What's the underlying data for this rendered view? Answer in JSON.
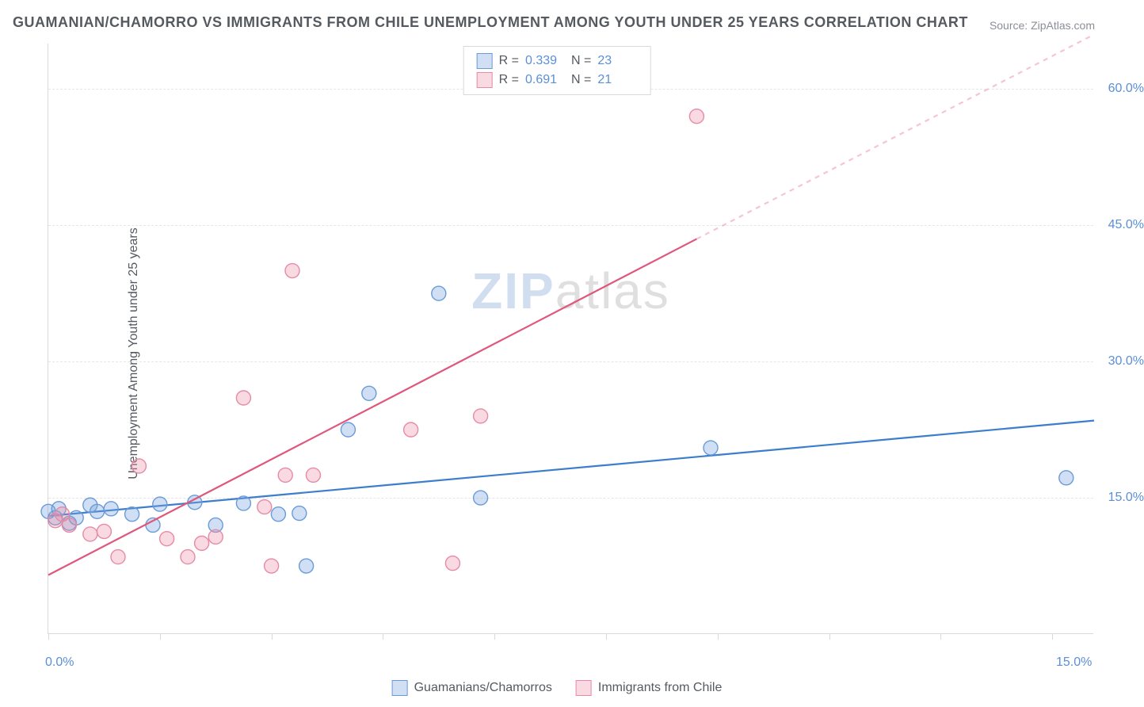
{
  "title": "GUAMANIAN/CHAMORRO VS IMMIGRANTS FROM CHILE UNEMPLOYMENT AMONG YOUTH UNDER 25 YEARS CORRELATION CHART",
  "source": "Source: ZipAtlas.com",
  "y_axis_label": "Unemployment Among Youth under 25 years",
  "watermark_a": "ZIP",
  "watermark_b": "atlas",
  "chart": {
    "type": "scatter",
    "xlim": [
      0,
      15
    ],
    "ylim": [
      0,
      65
    ],
    "x_ticks": [
      0,
      1.6,
      3.2,
      4.8,
      6.4,
      8.0,
      9.6,
      11.2,
      12.8,
      14.4
    ],
    "x_tick_labels": {
      "0": "0.0%",
      "15": "15.0%"
    },
    "y_gridlines": [
      15,
      30,
      45,
      60
    ],
    "y_tick_labels": [
      "15.0%",
      "30.0%",
      "45.0%",
      "60.0%"
    ],
    "background_color": "#ffffff",
    "grid_color": "#e4e6ea",
    "axis_color": "#d6d9dd",
    "marker_radius": 9,
    "marker_stroke_width": 1.4,
    "trend_line_width": 2.2
  },
  "series": [
    {
      "name": "Guamanians/Chamorros",
      "color_fill": "rgba(120,164,220,0.35)",
      "color_stroke": "#6a9bd8",
      "r_value": "0.339",
      "n_value": "23",
      "trend": {
        "x1": 0,
        "y1": 13.0,
        "x2": 15,
        "y2": 23.5,
        "color": "#3d7ecc"
      },
      "points": [
        [
          0.0,
          13.5
        ],
        [
          0.1,
          12.8
        ],
        [
          0.15,
          13.8
        ],
        [
          0.3,
          12.2
        ],
        [
          0.4,
          12.8
        ],
        [
          0.6,
          14.2
        ],
        [
          0.7,
          13.5
        ],
        [
          0.9,
          13.8
        ],
        [
          1.2,
          13.2
        ],
        [
          1.5,
          12.0
        ],
        [
          1.6,
          14.3
        ],
        [
          2.1,
          14.5
        ],
        [
          2.4,
          12.0
        ],
        [
          2.8,
          14.4
        ],
        [
          3.3,
          13.2
        ],
        [
          3.6,
          13.3
        ],
        [
          3.7,
          7.5
        ],
        [
          4.3,
          22.5
        ],
        [
          4.6,
          26.5
        ],
        [
          5.6,
          37.5
        ],
        [
          6.2,
          15.0
        ],
        [
          9.5,
          20.5
        ],
        [
          14.6,
          17.2
        ]
      ]
    },
    {
      "name": "Immigrants from Chile",
      "color_fill": "rgba(235,140,165,0.32)",
      "color_stroke": "#e68aa5",
      "r_value": "0.691",
      "n_value": "21",
      "trend": {
        "x1": 0,
        "y1": 6.5,
        "x2": 9.3,
        "y2": 43.5,
        "color": "#e0577d",
        "dash_x2": 15,
        "dash_y2": 66,
        "dash_color": "rgba(235,140,165,0.5)"
      },
      "points": [
        [
          0.1,
          12.5
        ],
        [
          0.2,
          13.2
        ],
        [
          0.3,
          12.0
        ],
        [
          0.6,
          11.0
        ],
        [
          0.8,
          11.3
        ],
        [
          1.0,
          8.5
        ],
        [
          1.3,
          18.5
        ],
        [
          1.7,
          10.5
        ],
        [
          2.0,
          8.5
        ],
        [
          2.2,
          10.0
        ],
        [
          2.4,
          10.7
        ],
        [
          2.8,
          26.0
        ],
        [
          3.1,
          14.0
        ],
        [
          3.2,
          7.5
        ],
        [
          3.4,
          17.5
        ],
        [
          3.5,
          40.0
        ],
        [
          3.8,
          17.5
        ],
        [
          5.2,
          22.5
        ],
        [
          5.8,
          7.8
        ],
        [
          6.2,
          24.0
        ],
        [
          9.3,
          57.0
        ]
      ]
    }
  ],
  "legend_top": {
    "r_label": "R =",
    "n_label": "N ="
  },
  "legend_bottom": [
    {
      "label": "Guamanians/Chamorros",
      "fill": "rgba(120,164,220,0.35)",
      "stroke": "#6a9bd8"
    },
    {
      "label": "Immigrants from Chile",
      "fill": "rgba(235,140,165,0.32)",
      "stroke": "#e68aa5"
    }
  ]
}
